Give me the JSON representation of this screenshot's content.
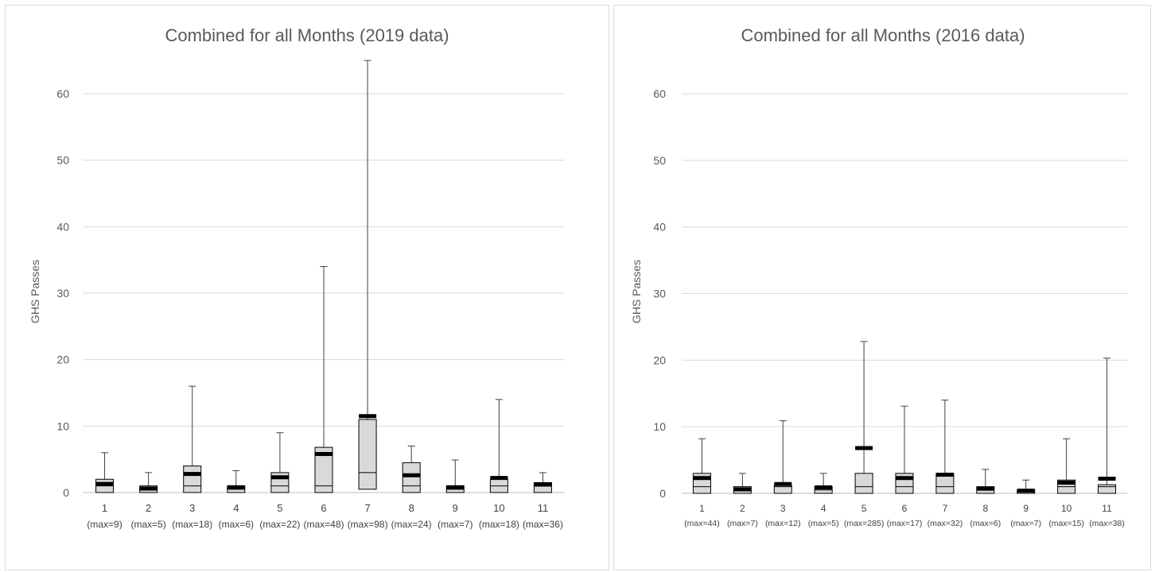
{
  "chart_data": [
    {
      "type": "box",
      "title": "Combined for all Months (2019 data)",
      "xlabel": "",
      "ylabel": "GHS Passes",
      "ylim": [
        0,
        65
      ],
      "yticks": [
        0,
        10,
        20,
        30,
        40,
        50,
        60
      ],
      "grid": true,
      "legend": "none",
      "colors": {
        "box_fill": "#d9d9d9",
        "box_stroke": "#000000",
        "grid": "#d9d9d9",
        "mean_marker": "#000000"
      },
      "categories": [
        "1",
        "2",
        "3",
        "4",
        "5",
        "6",
        "7",
        "8",
        "9",
        "10",
        "11"
      ],
      "category_notes": [
        "(max=9)",
        "(max=5)",
        "(max=18)",
        "(max=6)",
        "(max=22)",
        "(max=48)",
        "(max=98)",
        "(max=24)",
        "(max=7)",
        "(max=18)",
        "(max=36)"
      ],
      "whisker_low": [
        0,
        0,
        0,
        0,
        0,
        0,
        0.5,
        0,
        0,
        0,
        0
      ],
      "q1": [
        0,
        0,
        0,
        0,
        0,
        0,
        0.5,
        0,
        0,
        0,
        0
      ],
      "median": [
        1,
        0.5,
        1,
        0.5,
        1,
        1,
        3,
        1,
        0.5,
        1,
        1
      ],
      "q3": [
        2,
        1,
        4,
        1,
        3,
        6.8,
        11,
        4.5,
        1,
        2,
        1.5
      ],
      "whisker_high": [
        6,
        3,
        16,
        3.3,
        9,
        34,
        65,
        7,
        4.9,
        14,
        3
      ],
      "mean": [
        1.3,
        0.6,
        2.8,
        0.8,
        2.3,
        5.8,
        11.5,
        2.6,
        0.8,
        2.2,
        1.2
      ]
    },
    {
      "type": "box",
      "title": "Combined for all Months (2016 data)",
      "xlabel": "",
      "ylabel": "GHS Passes",
      "ylim": [
        0,
        65
      ],
      "yticks": [
        0,
        10,
        20,
        30,
        40,
        50,
        60
      ],
      "grid": true,
      "legend": "none",
      "colors": {
        "box_fill": "#d9d9d9",
        "box_stroke": "#000000",
        "grid": "#d9d9d9",
        "mean_marker": "#000000"
      },
      "categories": [
        "1",
        "2",
        "3",
        "4",
        "5",
        "6",
        "7",
        "8",
        "9",
        "10",
        "11"
      ],
      "category_notes": [
        "(max=44)",
        "(max=7)",
        "(max=12)",
        "(max=5)",
        "(max=285)",
        "(max=17)",
        "(max=32)",
        "(max=6)",
        "(max=7)",
        "(max=15)",
        "(max=38)"
      ],
      "whisker_low": [
        0,
        0,
        0,
        0,
        0,
        0,
        0,
        0,
        0,
        0,
        0
      ],
      "q1": [
        0,
        0,
        0,
        0,
        0,
        0,
        0,
        0,
        0,
        0,
        0
      ],
      "median": [
        1,
        0.5,
        1,
        0.5,
        1,
        1,
        1,
        0.5,
        0.3,
        1,
        1
      ],
      "q3": [
        3,
        1,
        1.2,
        1,
        3,
        3,
        3,
        1,
        0.5,
        2,
        1.3
      ],
      "whisker_high": [
        8.2,
        3,
        10.9,
        3,
        22.8,
        13.1,
        14,
        3.6,
        2,
        8.2,
        20.3
      ],
      "mean": [
        2.3,
        0.6,
        1.4,
        0.9,
        6.8,
        2.3,
        2.8,
        0.7,
        0.4,
        1.6,
        2.2
      ]
    }
  ]
}
